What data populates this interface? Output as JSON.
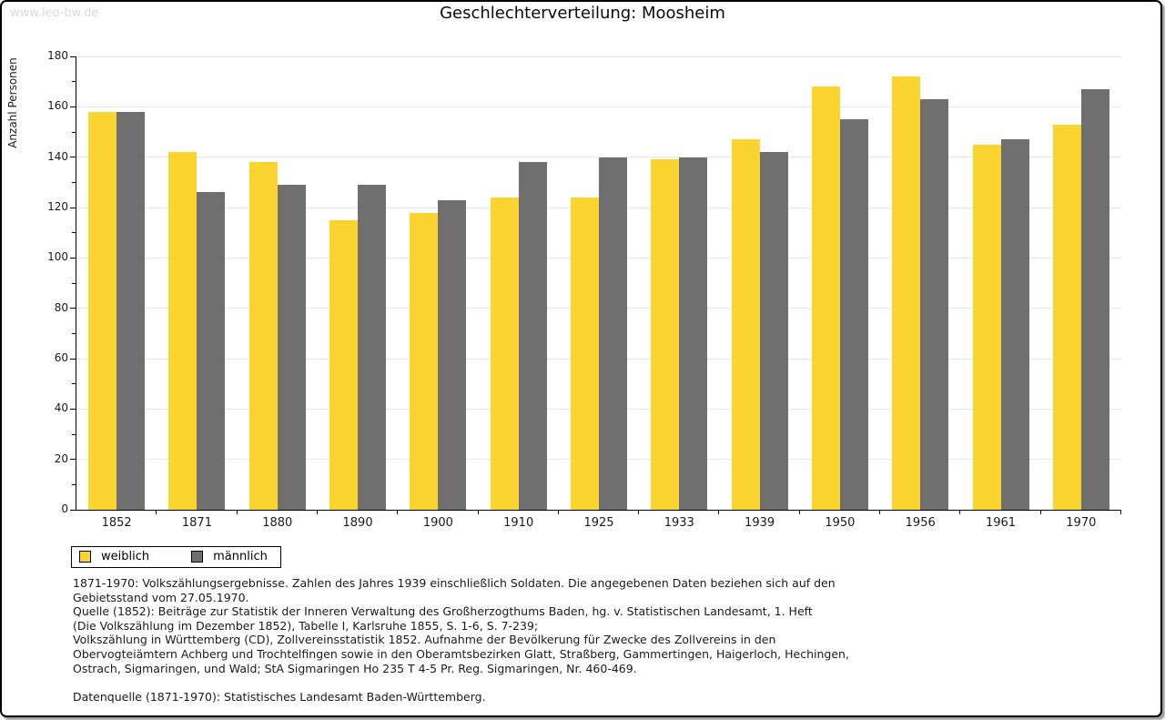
{
  "page": {
    "watermark": "www.leo-bw.de",
    "title": "Geschlechterverteilung: Moosheim"
  },
  "chart_data": {
    "type": "bar",
    "title": "Geschlechterverteilung: Moosheim",
    "xlabel": "",
    "ylabel": "Anzahl Personen",
    "ylim": [
      0,
      180
    ],
    "yticks": [
      0,
      20,
      40,
      60,
      80,
      100,
      120,
      140,
      160,
      180
    ],
    "grid": "horizontal",
    "legend_position": "bottom-left",
    "categories": [
      "1852",
      "1871",
      "1880",
      "1890",
      "1900",
      "1910",
      "1925",
      "1933",
      "1939",
      "1950",
      "1956",
      "1961",
      "1970"
    ],
    "series": [
      {
        "name": "weiblich",
        "color": "#fcd42f",
        "values": [
          158,
          142,
          138,
          115,
          118,
          124,
          124,
          139,
          147,
          168,
          172,
          145,
          153
        ]
      },
      {
        "name": "männlich",
        "color": "#6f6f6f",
        "values": [
          158,
          126,
          129,
          129,
          123,
          138,
          140,
          140,
          142,
          155,
          163,
          147,
          167
        ]
      }
    ]
  },
  "footer": {
    "lines": [
      "1871-1970: Volkszählungsergebnisse. Zahlen des Jahres 1939 einschließlich Soldaten. Die angegebenen Daten beziehen sich auf den",
      "Gebietsstand vom 27.05.1970.",
      "Quelle (1852): Beiträge zur Statistik der Inneren Verwaltung des Großherzogthums Baden, hg. v. Statistischen Landesamt, 1. Heft",
      "(Die Volkszählung im Dezember 1852), Tabelle I, Karlsruhe 1855, S. 1-6, S. 7-239;",
      "Volkszählung in Württemberg (CD), Zollvereinsstatistik 1852. Aufnahme der Bevölkerung für Zwecke des Zollvereins in den",
      "Obervogteiämtern Achberg und Trochtelfingen sowie in den Oberamtsbezirken Glatt, Straßberg, Gammertingen, Haigerloch, Hechingen,",
      "Ostrach, Sigmaringen, und Wald; StA Sigmaringen Ho 235 T 4-5 Pr. Reg. Sigmaringen, Nr. 460-469.",
      "",
      "Datenquelle (1871-1970): Statistisches Landesamt Baden-Württemberg."
    ]
  }
}
